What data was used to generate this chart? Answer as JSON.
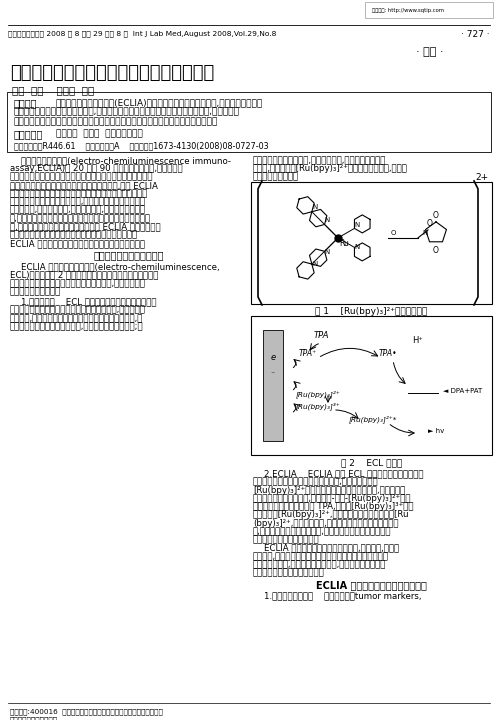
{
  "title": "电化学发光免疫分析及在临床检验中的应用",
  "authors": "谢娟  综述    丁世家  审校",
  "header_left": "国际检验医学杂志 2008 年 8 月第 29 卷第 8 期  Int J Lab Med,August 2008,Vol.29,No.8",
  "header_right": "· 727 ·",
  "section_label": "· 综述 ·",
  "abstract_label": "【摘要】",
  "abstract_line1": "电化学发光免疫分析技术(ECLIA)是近年来发展的一项高新技术,作为一种痕量分析",
  "abstract_line2": "于段在物质分析中越来越得到重视,现已经应用于基础医学研究和临床疾病的诊断中,其应用前景",
  "abstract_line3": "十分可观。本文主要综述了电化学发光免疫分析的基本原理及其在临床检验中的应用。",
  "keywords_label": "【关键词】",
  "keywords_text": "电化学；  免疫；  化学发光测定法",
  "classification": "中图分类号：R446.61    文献标识码：A    文章编号：1673-4130(2008)08-0727-03",
  "section1_title": "电化学发光免疫分析的原理",
  "section2_title": "ECLIA 免疫分析在临床检验中的应用",
  "fig1_caption": "图 1    [Ru(bpy)₃]²⁺的化学结构式",
  "fig2_caption": "图 2    ECL 示意图",
  "col1_lines": [
    "    电化学发光免疫分析(electro-chemiluminescence immuno-",
    "assay,ECLIA)是 20 世纪 90 年代初发展起来的,是继放射免",
    "疫、酶免疫、荧光免疫、化学发光免疫测定以后的新一代标记免",
    "疫测定技术。它将电化学发光和免疫测定相结合,采用 ECLIA",
    "系统对各种物质进行快速分析。此系统是通过在电极表面由电",
    "化学引发的特异性化学发光反应,由电启动发光过程在电极表",
    "面循环进行,产生大量光子,使电信号增强,检测灵敏度大为提",
    "高,并且易于控制。该方法具有使检测结果更精确、更稳定的优",
    "点,尤其适用于微量物质的测定。近年来 ECLIA 作为一种高灵",
    "敏度、高选择性的方法已引起人们的极大研究兴趣。现就",
    "ECLIA 原理及近几年来在临床检验中的应用综述如下。"
  ],
  "col1_p2_lines": [
    "    ECLIA 是一种将电化学发光(electro-chemiluminescence,",
    "ECL)和免疫检测 2 种分析方法与生物素、亲和素和固相磁性",
    "珠相结合而融于一体的新的标记免疫分析技术,它在生命科学",
    "研究中发挥重要作用。"
  ],
  "col1_p3_lines": [
    "    1.电化学发光    ECL 是通过电极对含有化学发光物质",
    "的某化学体系施加一定的电压或通过一定的电流,以至产生某",
    "种蓄积质,该物质与化学发光物质反应并提供足够的能量,使",
    "得发光物质从基态跃迁到激发态,再返回基态时能发出光;或"
  ],
  "col2_p0_lines": [
    "极表面可用酚复始地进行,产生许多光子,用光电倍增管检测",
    "光强度,而光强度与[Ru(bpy)₃]²⁺的浓度呈线性关系,即可测",
    "出待测物质的含量。"
  ],
  "col2_p2_lines": [
    "    2.ECLIA    ECLIA 是将 ECL 的高灵敏度和免疫学的高",
    "特异性相结合在一起的新标记分析技术,它是将发光物质",
    "[Ru(bpy)₃]²⁺作为标记物标记在相应的抗体上,再通过抗原",
    "抗体反应与待分析物结合,形成抗原-抗体-[Ru(bpy)₃]²⁺复合",
    "物。此时在反应体系中加入 TPA,就会把[Ru(bpy)₃]³⁺还原",
    "为激发态的[Ru(bpy)₃]²⁺,发射光子。常用的标记物是[Ru",
    "(bpy)₃]²⁺,具有水溶性强,空间位阻及相对分子质量小的特",
    "点,用它可标记的物质非常广泛,可与抗体、半抗原、激素及小",
    "分子核酸等结合形成标记物。",
    "    ECLIA 有其突出的优点是标记物稳定,灵敏度高,可实现",
    "多元检测,均相免疫分析及全自动化。这是一种很有发展前途",
    "的免疫分析方法,日益受到人们的重视,目前已广泛应用于抗",
    "原、半抗原及抗体的免疫检测。"
  ],
  "col2_p3_lines": [
    "    1.肿瘤标志物的分析    肿瘤标志物（tumor markers,"
  ],
  "footer1": "作者单位:400016  重庆医科大学医学检验学院，临床检验诊断学教研室",
  "footer2": "获共检教育部重点实验室",
  "watermark": "支持官方: http://www.sqtip.com",
  "background_color": "#ffffff"
}
